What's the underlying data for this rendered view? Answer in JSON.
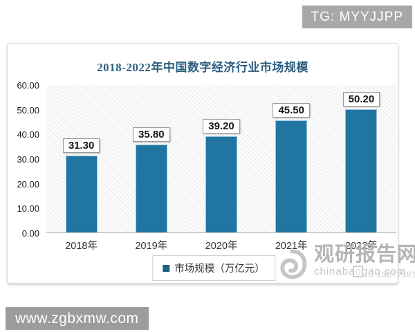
{
  "badges": {
    "tg": "TG: MYYJJPP",
    "site": "www.zgbxmw.com"
  },
  "chart_data": {
    "type": "bar",
    "title": "2018-2022年中国数字经济行业市场规模",
    "categories": [
      "2018年",
      "2019年",
      "2020年",
      "2021年",
      "2022年"
    ],
    "values": [
      31.3,
      35.8,
      39.2,
      45.5,
      50.2
    ],
    "value_labels": [
      "31.30",
      "35.80",
      "39.20",
      "45.50",
      "50.20"
    ],
    "legend": [
      "市场规模（万亿元）"
    ],
    "legend_position": "bottom",
    "xlabel": "",
    "ylabel": "",
    "ylim": [
      0,
      60
    ],
    "yticks": [
      "60.00",
      "50.00",
      "40.00",
      "30.00",
      "20.00",
      "10.00",
      "0.00"
    ],
    "grid": false,
    "bar_color": "#2076a0",
    "legend_color": "#1e607e"
  },
  "watermark": {
    "brand": "观研报告网",
    "domain": "chinabaogao.com",
    "id": "ID:13672581"
  }
}
